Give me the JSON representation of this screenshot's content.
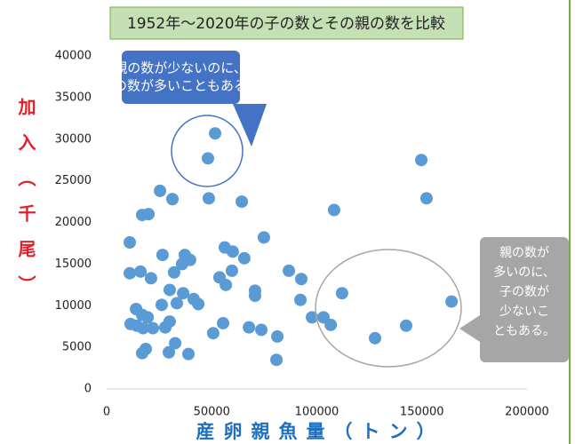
{
  "chart_data": {
    "type": "scatter",
    "title": "1952年～2020年の子の数とその親の数を比較",
    "x_label": "産卵親魚量（トン）",
    "y_label": "加入（千尾）",
    "annotations": [
      {
        "lines": [
          "親の数が少ないのに、",
          "子の数が多いこともある。"
        ]
      },
      {
        "lines": [
          "親の数が",
          "多いのに、",
          "子の数が",
          "少ないこ",
          "ともある。"
        ]
      }
    ],
    "color": "#5b9bd5",
    "xlim": [
      0,
      200000
    ],
    "xticks": [
      0,
      50000,
      100000,
      150000,
      200000
    ],
    "ylim": [
      0,
      40000
    ],
    "yticks": [
      0,
      5000,
      10000,
      15000,
      20000,
      25000,
      30000,
      35000,
      40000
    ],
    "grid": false,
    "x": [
      51600,
      48200,
      48600,
      25400,
      31300,
      16900,
      19900,
      64300,
      74800,
      11000,
      56200,
      60000,
      65500,
      26600,
      37200,
      39700,
      35900,
      32100,
      16100,
      11000,
      21100,
      59600,
      53700,
      56700,
      86700,
      92600,
      70600,
      70600,
      108200,
      30000,
      36400,
      41400,
      43600,
      26200,
      33400,
      14000,
      16900,
      19500,
      30000,
      11400,
      14400,
      17300,
      27900,
      22000,
      55400,
      67700,
      73600,
      50700,
      81200,
      32600,
      18600,
      16900,
      29600,
      38900,
      80800,
      92200,
      97700,
      103200,
      106600,
      112000,
      149700,
      152200,
      164100,
      142500,
      127700
    ],
    "values": [
      30700,
      27700,
      22900,
      23800,
      22800,
      20900,
      21000,
      22500,
      18200,
      17600,
      17000,
      16500,
      15700,
      16100,
      16100,
      15500,
      15000,
      14000,
      14100,
      13900,
      13300,
      14200,
      13400,
      12500,
      14200,
      13200,
      11800,
      11200,
      21500,
      11900,
      11500,
      10800,
      10200,
      10100,
      10300,
      9600,
      8900,
      8600,
      8100,
      7800,
      7600,
      7300,
      7400,
      7300,
      7900,
      7400,
      7100,
      6700,
      6300,
      5500,
      4800,
      4300,
      4400,
      4200,
      3500,
      10700,
      8600,
      8600,
      7700,
      11500,
      27500,
      22900,
      10500,
      7600,
      6100
    ]
  }
}
